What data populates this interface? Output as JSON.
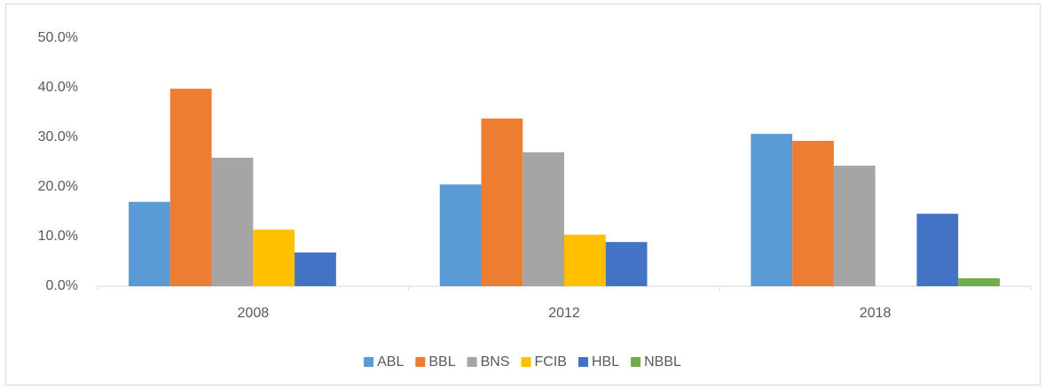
{
  "chart_data": {
    "type": "bar",
    "categories": [
      "2008",
      "2012",
      "2018"
    ],
    "series": [
      {
        "name": "ABL",
        "color": "#5b9bd5",
        "values": [
          17.0,
          20.5,
          30.7
        ]
      },
      {
        "name": "BBL",
        "color": "#ed7d31",
        "values": [
          39.8,
          33.8,
          29.3
        ]
      },
      {
        "name": "BNS",
        "color": "#a5a5a5",
        "values": [
          25.9,
          27.0,
          24.3
        ]
      },
      {
        "name": "FCIB",
        "color": "#ffc000",
        "values": [
          11.4,
          10.4,
          null
        ]
      },
      {
        "name": "HBL",
        "color": "#4472c4",
        "values": [
          6.8,
          8.9,
          14.6
        ]
      },
      {
        "name": "NBBL",
        "color": "#70ad47",
        "values": [
          null,
          null,
          1.6
        ]
      }
    ],
    "ylim": [
      0,
      50
    ],
    "yticks": [
      {
        "value": 0,
        "label": "0.0%"
      },
      {
        "value": 10,
        "label": "10.0%"
      },
      {
        "value": 20,
        "label": "20.0%"
      },
      {
        "value": 30,
        "label": "30.0%"
      },
      {
        "value": 40,
        "label": "40.0%"
      },
      {
        "value": 50,
        "label": "50.0%"
      }
    ],
    "grid": false,
    "legend": "bottom"
  }
}
